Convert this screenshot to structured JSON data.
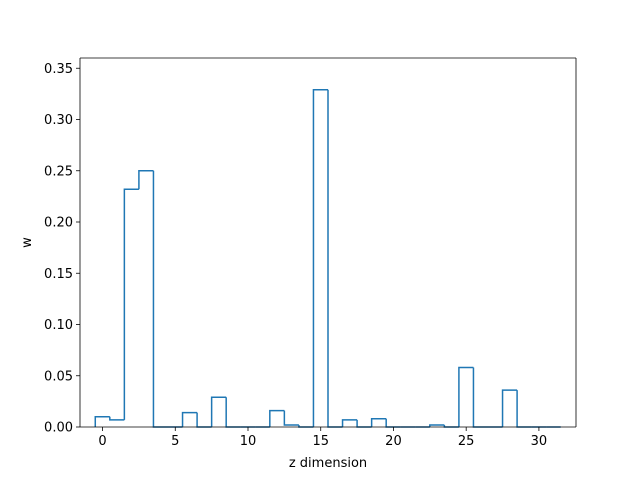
{
  "chart_data": {
    "type": "step",
    "title": "",
    "xlabel": "z dimension",
    "ylabel": "w",
    "xlim": [
      -1.55,
      32.55
    ],
    "ylim": [
      0,
      0.36
    ],
    "xticks": [
      0,
      5,
      10,
      15,
      20,
      25,
      30
    ],
    "xtick_labels": [
      "0",
      "5",
      "10",
      "15",
      "20",
      "25",
      "30"
    ],
    "yticks": [
      0.0,
      0.05,
      0.1,
      0.15,
      0.2,
      0.25,
      0.3,
      0.35
    ],
    "ytick_labels": [
      "0.00",
      "0.05",
      "0.10",
      "0.15",
      "0.20",
      "0.25",
      "0.30",
      "0.35"
    ],
    "grid": false,
    "color": "#1f77b4",
    "series": [
      {
        "x": [
          0,
          1,
          2,
          3,
          4,
          5,
          6,
          7,
          8,
          9,
          10,
          11,
          12,
          13,
          14,
          15,
          16,
          17,
          18,
          19,
          20,
          21,
          22,
          23,
          24,
          25,
          26,
          27,
          28,
          29,
          30,
          31
        ],
        "values": [
          0.01,
          0.007,
          0.232,
          0.25,
          0.0,
          0.0,
          0.014,
          0.0,
          0.029,
          0.0,
          0.0,
          0.0,
          0.016,
          0.002,
          0.0,
          0.329,
          0.0,
          0.007,
          0.0,
          0.008,
          0.0,
          0.0,
          0.0,
          0.002,
          0.0,
          0.058,
          0.0,
          0.0,
          0.036,
          0.0,
          0.0,
          0.0
        ]
      }
    ]
  }
}
